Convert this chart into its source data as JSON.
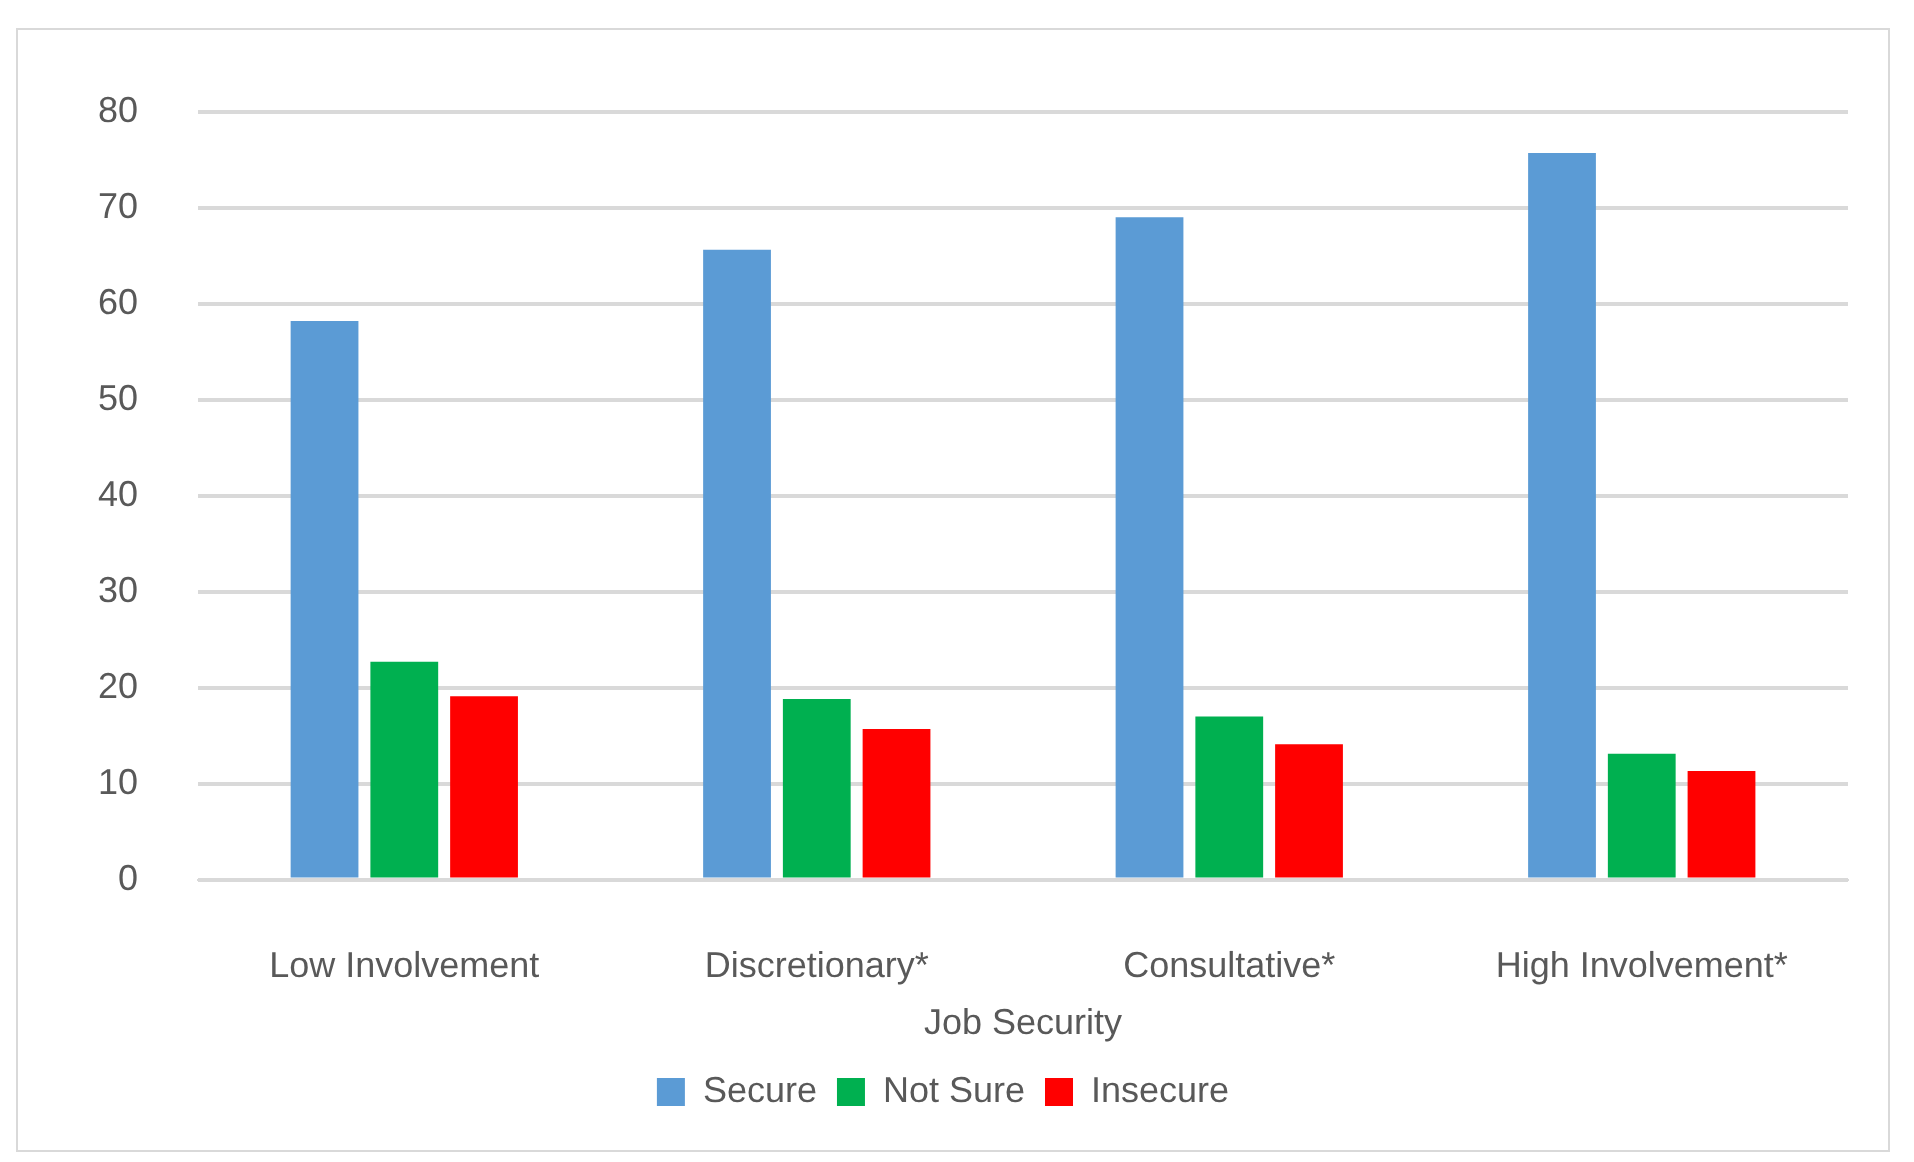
{
  "chart_data": {
    "type": "bar",
    "xlabel": "Job Security",
    "categories": [
      "Low Involvement",
      "Discretionary*",
      "Consultative*",
      "High Involvement*"
    ],
    "series": [
      {
        "name": "Secure",
        "color": "#5b9bd5",
        "values": [
          58.2,
          65.6,
          69.0,
          75.7
        ]
      },
      {
        "name": "Not Sure",
        "color": "#00b050",
        "values": [
          22.7,
          18.8,
          17.0,
          13.1
        ]
      },
      {
        "name": "Insecure",
        "color": "#ff0000",
        "values": [
          19.1,
          15.7,
          14.1,
          11.3
        ]
      }
    ],
    "ylim": [
      0,
      80
    ],
    "yticks": [
      0,
      10,
      20,
      30,
      40,
      50,
      60,
      70,
      80
    ],
    "grid": "y",
    "legend": "bottom"
  }
}
